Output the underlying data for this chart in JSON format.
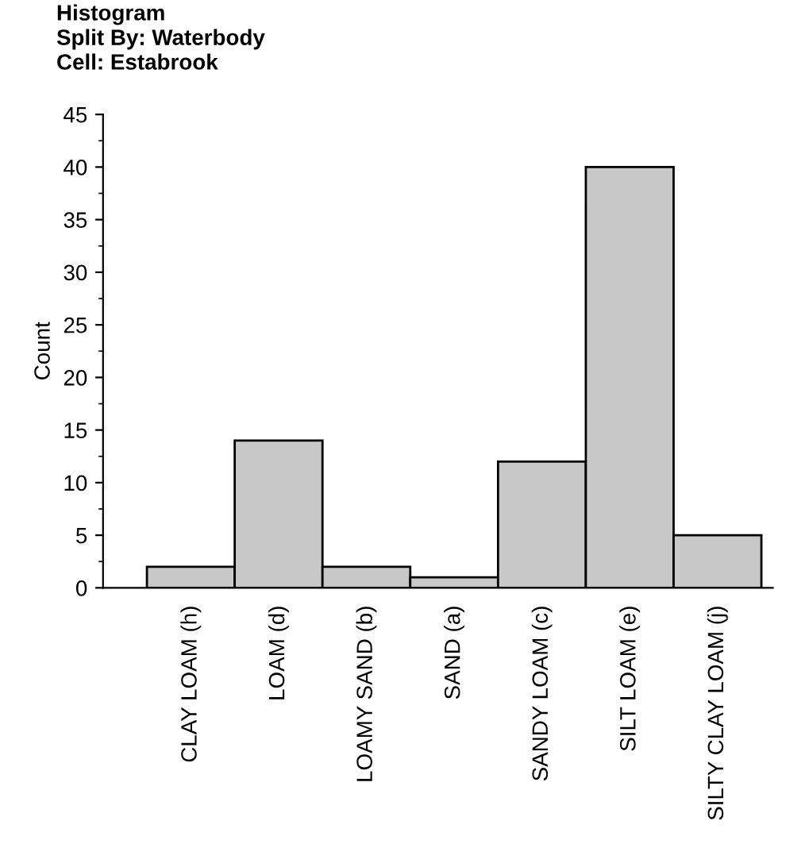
{
  "chart_data": {
    "type": "bar",
    "title": "Histogram",
    "subtitle": "Split By: Waterbody\nCell: Estabrook",
    "ylabel": "Count",
    "categories": [
      "CLAY LOAM (h)",
      "LOAM (d)",
      "LOAMY SAND (b)",
      "SAND (a)",
      "SANDY LOAM (c)",
      "SILT LOAM (e)",
      "SILTY CLAY LOAM (j)"
    ],
    "values": [
      2,
      14,
      2,
      1,
      12,
      40,
      5
    ],
    "color": "#c8c8c8",
    "ylim": [
      0,
      45
    ],
    "yticks": [
      0,
      5,
      10,
      15,
      20,
      25,
      30,
      35,
      40,
      45
    ],
    "grid": false,
    "legend": false
  }
}
